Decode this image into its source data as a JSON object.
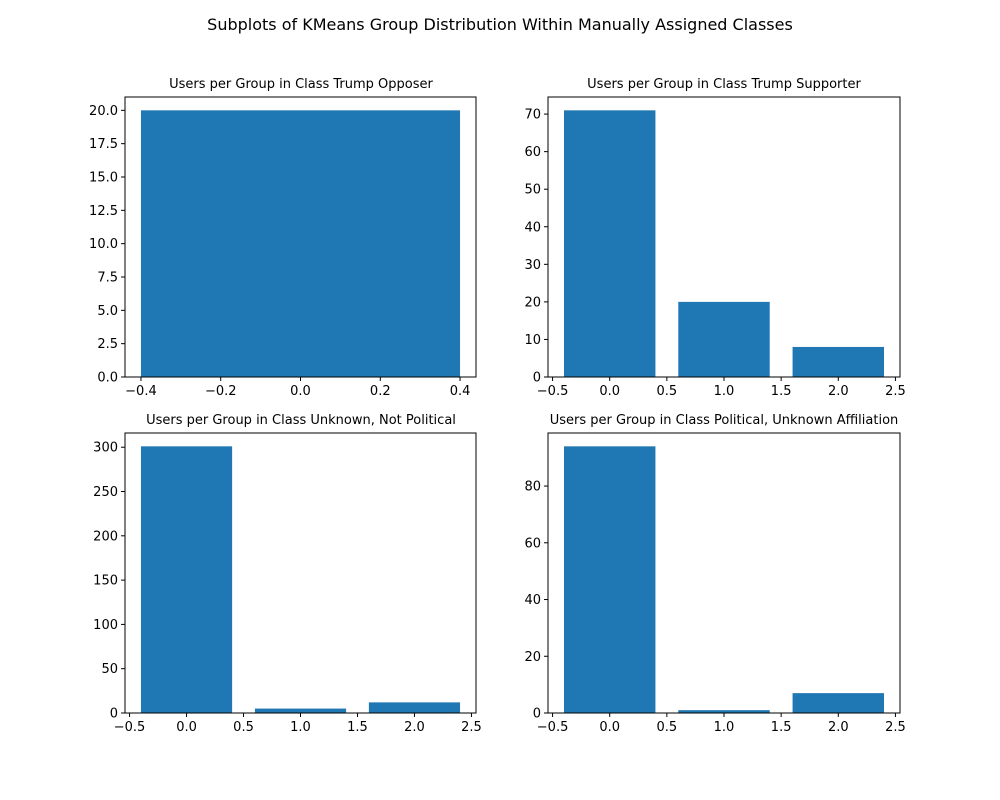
{
  "figure_title": "Subplots of KMeans Group Distribution Within Manually Assigned Classes",
  "bar_color": "#1f77b4",
  "chart_data": [
    {
      "type": "bar",
      "title": "Users per Group in Class Trump Opposer",
      "x": [
        0
      ],
      "values": [
        20
      ],
      "bar_width": 0.8,
      "xlim": [
        -0.44,
        0.44
      ],
      "ylim": [
        0,
        21
      ],
      "xticks": [
        -0.4,
        -0.2,
        0.0,
        0.2,
        0.4
      ],
      "xtick_labels": [
        "−0.4",
        "−0.2",
        "0.0",
        "0.2",
        "0.4"
      ],
      "yticks": [
        0,
        2.5,
        5,
        7.5,
        10,
        12.5,
        15,
        17.5,
        20
      ],
      "ytick_labels": [
        "0.0",
        "2.5",
        "5.0",
        "7.5",
        "10.0",
        "12.5",
        "15.0",
        "17.5",
        "20.0"
      ],
      "xlabel": "",
      "ylabel": ""
    },
    {
      "type": "bar",
      "title": "Users per Group in Class Trump Supporter",
      "x": [
        0,
        1,
        2
      ],
      "values": [
        71,
        20,
        8
      ],
      "bar_width": 0.8,
      "xlim": [
        -0.54,
        2.54
      ],
      "ylim": [
        0,
        74.55
      ],
      "xticks": [
        -0.5,
        0.0,
        0.5,
        1.0,
        1.5,
        2.0,
        2.5
      ],
      "xtick_labels": [
        "−0.5",
        "0.0",
        "0.5",
        "1.0",
        "1.5",
        "2.0",
        "2.5"
      ],
      "yticks": [
        0,
        10,
        20,
        30,
        40,
        50,
        60,
        70
      ],
      "ytick_labels": [
        "0",
        "10",
        "20",
        "30",
        "40",
        "50",
        "60",
        "70"
      ],
      "xlabel": "",
      "ylabel": ""
    },
    {
      "type": "bar",
      "title": "Users per Group in Class Unknown, Not Political",
      "x": [
        0,
        1,
        2
      ],
      "values": [
        301,
        5,
        12
      ],
      "bar_width": 0.8,
      "xlim": [
        -0.54,
        2.54
      ],
      "ylim": [
        0,
        316.05
      ],
      "xticks": [
        -0.5,
        0.0,
        0.5,
        1.0,
        1.5,
        2.0,
        2.5
      ],
      "xtick_labels": [
        "−0.5",
        "0.0",
        "0.5",
        "1.0",
        "1.5",
        "2.0",
        "2.5"
      ],
      "yticks": [
        0,
        50,
        100,
        150,
        200,
        250,
        300
      ],
      "ytick_labels": [
        "0",
        "50",
        "100",
        "150",
        "200",
        "250",
        "300"
      ],
      "xlabel": "",
      "ylabel": ""
    },
    {
      "type": "bar",
      "title": "Users per Group in Class Political, Unknown Affiliation",
      "x": [
        0,
        1,
        2
      ],
      "values": [
        94,
        1,
        7
      ],
      "bar_width": 0.8,
      "xlim": [
        -0.54,
        2.54
      ],
      "ylim": [
        0,
        98.7
      ],
      "xticks": [
        -0.5,
        0.0,
        0.5,
        1.0,
        1.5,
        2.0,
        2.5
      ],
      "xtick_labels": [
        "−0.5",
        "0.0",
        "0.5",
        "1.0",
        "1.5",
        "2.0",
        "2.5"
      ],
      "yticks": [
        0,
        20,
        40,
        60,
        80
      ],
      "ytick_labels": [
        "0",
        "20",
        "40",
        "60",
        "80"
      ],
      "xlabel": "",
      "ylabel": ""
    }
  ]
}
